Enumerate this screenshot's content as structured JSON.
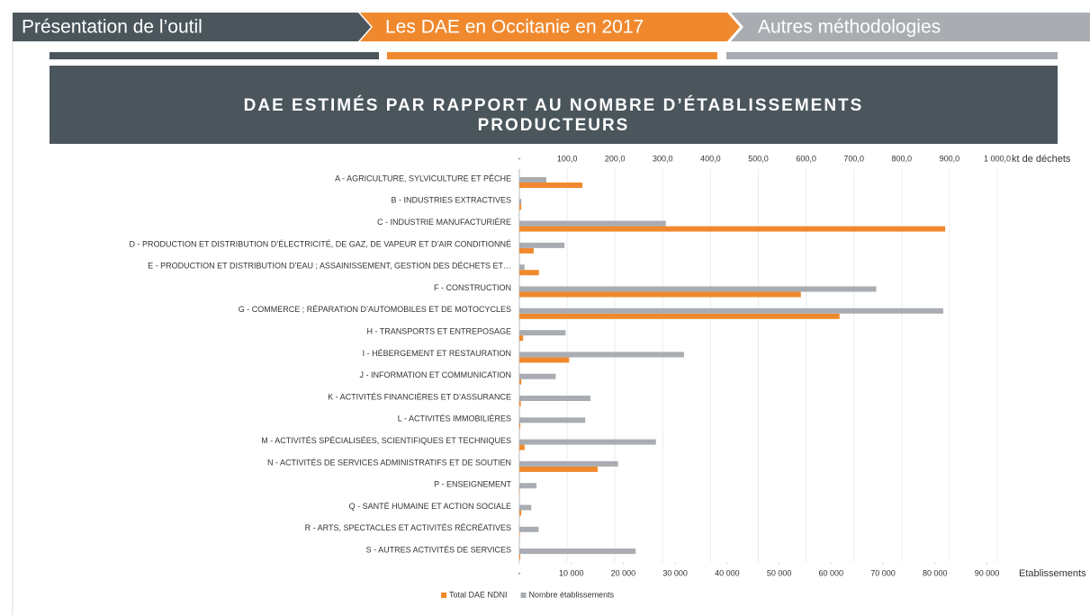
{
  "nav": [
    "Présentation de l’outil",
    "Les DAE en Occitanie en 2017",
    "Autres méthodologies"
  ],
  "chart_data": {
    "type": "hbar",
    "title": "DAE ESTIMÉS PAR RAPPORT AU NOMBRE D’ÉTABLISSEMENTS PRODUCTEURS",
    "x2label": "kt de déchets",
    "xlabel": "Etablissements",
    "categories": [
      "A - AGRICULTURE, SYLVICULTURE ET PÊCHE",
      "B - INDUSTRIES EXTRACTIVES",
      "C - INDUSTRIE MANUFACTURIÈRE",
      "D - PRODUCTION ET DISTRIBUTION D’ÉLECTRICITÉ, DE GAZ, DE VAPEUR ET D’AIR CONDITIONNÉ",
      "E - PRODUCTION ET DISTRIBUTION D’EAU ; ASSAINISSEMENT, GESTION DES DÉCHETS ET…",
      "F - CONSTRUCTION",
      "G - COMMERCE ; RÉPARATION D’AUTOMOBILES ET DE MOTOCYCLES",
      "H - TRANSPORTS ET ENTREPOSAGE",
      "I - HÉBERGEMENT ET RESTAURATION",
      "J - INFORMATION ET COMMUNICATION",
      "K - ACTIVITÉS FINANCIÈRES ET D’ASSURANCE",
      "L - ACTIVITÉS IMMOBILIÈRES",
      "M - ACTIVITÉS SPÉCIALISÉES, SCIENTIFIQUES ET TECHNIQUES",
      "N - ACTIVITÉS DE SERVICES ADMINISTRATIFS ET DE SOUTIEN",
      "P - ENSEIGNEMENT",
      "Q - SANTÉ HUMAINE ET ACTION SOCIALE",
      "R - ARTS, SPECTACLES ET ACTIVITÉS RÉCRÉATIVES",
      "S - AUTRES ACTIVITÉS DE SERVICES"
    ],
    "series": [
      {
        "name": "Total DAE NDNI",
        "color": "#f0892e",
        "axis": "x2",
        "values": [
          132,
          4,
          891,
          30,
          41,
          589,
          670,
          8,
          104,
          4,
          3,
          2,
          11,
          164,
          1,
          4,
          1,
          2
        ]
      },
      {
        "name": "Nombre établissements",
        "color": "#a9adb1",
        "axis": "x",
        "values": [
          5200,
          400,
          28200,
          8700,
          1000,
          68700,
          81600,
          8900,
          31700,
          7000,
          13700,
          12700,
          26300,
          19000,
          3300,
          2300,
          3700,
          22400
        ]
      }
    ],
    "x2lim": [
      0,
      1000
    ],
    "x2ticks": [
      {
        "value": 0,
        "label": "-"
      },
      {
        "value": 100,
        "label": "100,0"
      },
      {
        "value": 200,
        "label": "200,0"
      },
      {
        "value": 300,
        "label": "300,0"
      },
      {
        "value": 400,
        "label": "400,0"
      },
      {
        "value": 500,
        "label": "500,0"
      },
      {
        "value": 600,
        "label": "600,0"
      },
      {
        "value": 700,
        "label": "700,0"
      },
      {
        "value": 800,
        "label": "800,0"
      },
      {
        "value": 900,
        "label": "900,0"
      },
      {
        "value": 1000,
        "label": "1 000,0"
      }
    ],
    "xlim": [
      0,
      92000
    ],
    "xticks": [
      {
        "value": 0,
        "label": "-"
      },
      {
        "value": 10000,
        "label": "10 000"
      },
      {
        "value": 20000,
        "label": "20 000"
      },
      {
        "value": 30000,
        "label": "30 000"
      },
      {
        "value": 40000,
        "label": "40 000"
      },
      {
        "value": 50000,
        "label": "50 000"
      },
      {
        "value": 60000,
        "label": "60 000"
      },
      {
        "value": 70000,
        "label": "70 000"
      },
      {
        "value": 80000,
        "label": "80 000"
      },
      {
        "value": 90000,
        "label": "90 000"
      }
    ],
    "grid": true,
    "legend": "bottom"
  }
}
